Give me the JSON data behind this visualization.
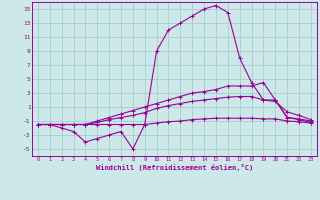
{
  "xlabel": "Windchill (Refroidissement éolien,°C)",
  "background_color": "#cce8e8",
  "grid_color": "#aacccc",
  "line_color": "#990099",
  "xlim": [
    -0.5,
    23.5
  ],
  "ylim": [
    -6,
    16
  ],
  "yticks": [
    -5,
    -3,
    -1,
    1,
    3,
    5,
    7,
    9,
    11,
    13,
    15
  ],
  "xticks": [
    0,
    1,
    2,
    3,
    4,
    5,
    6,
    7,
    8,
    9,
    10,
    11,
    12,
    13,
    14,
    15,
    16,
    17,
    18,
    19,
    20,
    21,
    22,
    23
  ],
  "series": [
    {
      "x": [
        0,
        1,
        2,
        3,
        4,
        5,
        6,
        7,
        8,
        9,
        10,
        11,
        12,
        13,
        14,
        15,
        16,
        17,
        18,
        19,
        20,
        21,
        22,
        23
      ],
      "y": [
        -1.5,
        -1.5,
        -2,
        -2.5,
        -4,
        -3.5,
        -3,
        -2.5,
        -5,
        -1.5,
        9,
        12,
        13,
        14,
        15,
        15.5,
        14.5,
        8,
        4.5,
        2,
        2,
        -0.5,
        -0.8,
        -1.2
      ]
    },
    {
      "x": [
        0,
        1,
        2,
        3,
        4,
        5,
        6,
        7,
        8,
        9,
        10,
        11,
        12,
        13,
        14,
        15,
        16,
        17,
        18,
        19,
        20,
        21,
        22,
        23
      ],
      "y": [
        -1.5,
        -1.5,
        -1.5,
        -1.5,
        -1.5,
        -1,
        -0.5,
        0,
        0.5,
        1,
        1.5,
        2,
        2.5,
        3,
        3.2,
        3.5,
        4,
        4,
        4,
        4.5,
        2,
        -0.5,
        -0.7,
        -1
      ]
    },
    {
      "x": [
        0,
        1,
        2,
        3,
        4,
        5,
        6,
        7,
        8,
        9,
        10,
        11,
        12,
        13,
        14,
        15,
        16,
        17,
        18,
        19,
        20,
        21,
        22,
        23
      ],
      "y": [
        -1.5,
        -1.5,
        -1.5,
        -1.5,
        -1.5,
        -1.2,
        -0.8,
        -0.5,
        -0.2,
        0.2,
        0.8,
        1.2,
        1.5,
        1.8,
        2.0,
        2.2,
        2.4,
        2.5,
        2.5,
        2.0,
        1.8,
        0.3,
        -0.2,
        -0.8
      ]
    },
    {
      "x": [
        0,
        1,
        2,
        3,
        4,
        5,
        6,
        7,
        8,
        9,
        10,
        11,
        12,
        13,
        14,
        15,
        16,
        17,
        18,
        19,
        20,
        21,
        22,
        23
      ],
      "y": [
        -1.5,
        -1.5,
        -1.5,
        -1.5,
        -1.5,
        -1.5,
        -1.5,
        -1.5,
        -1.5,
        -1.5,
        -1.3,
        -1.1,
        -1.0,
        -0.8,
        -0.7,
        -0.6,
        -0.6,
        -0.6,
        -0.6,
        -0.7,
        -0.7,
        -1.0,
        -1.1,
        -1.3
      ]
    }
  ]
}
